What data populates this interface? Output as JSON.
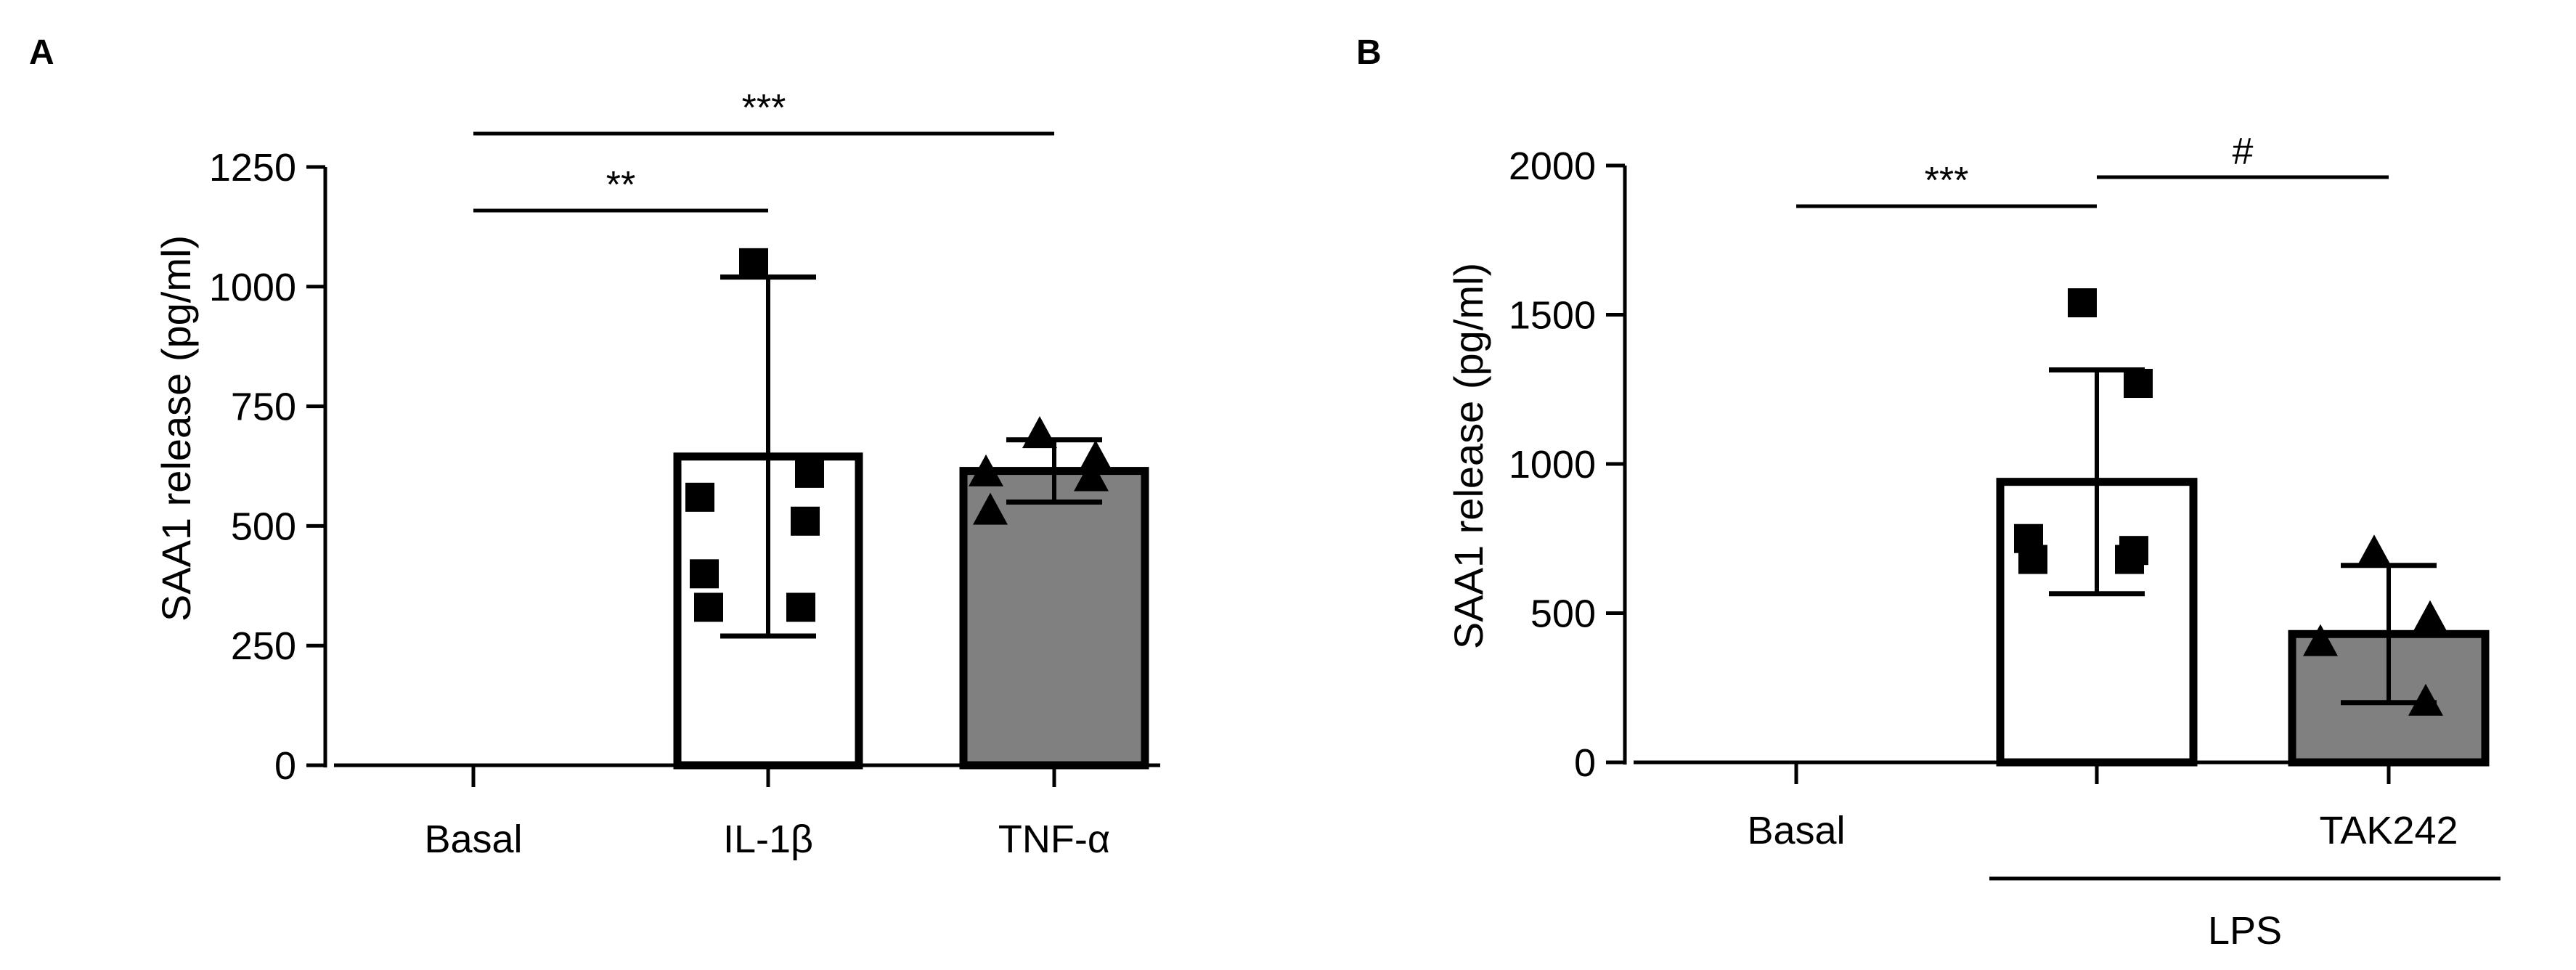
{
  "chart_data": [
    {
      "panel": "A",
      "type": "bar",
      "ylabel": "SAA1 release (pg/ml)",
      "ylim": [
        0,
        1250
      ],
      "yticks": [
        0,
        250,
        500,
        750,
        1000,
        1250
      ],
      "categories": [
        "Basal",
        "IL-1β",
        "TNF-α"
      ],
      "bars": [
        {
          "category": "Basal",
          "value": 0,
          "error": 0,
          "fill": "#ffffff",
          "marker": "none",
          "points": []
        },
        {
          "category": "IL-1β",
          "value": 645,
          "error": 375,
          "fill": "#ffffff",
          "marker": "square",
          "points": [
            1050,
            610,
            560,
            510,
            400,
            330,
            330
          ]
        },
        {
          "category": "TNF-α",
          "value": 615,
          "error": 65,
          "fill": "#808080",
          "marker": "triangle",
          "points": [
            690,
            640,
            610,
            600,
            530
          ]
        }
      ],
      "significance": [
        {
          "from": "Basal",
          "to": "IL-1β",
          "label": "**"
        },
        {
          "from": "Basal",
          "to": "TNF-α",
          "label": "***"
        }
      ]
    },
    {
      "panel": "B",
      "type": "bar",
      "ylabel": "SAA1 release (pg/ml)",
      "ylim": [
        0,
        2000
      ],
      "yticks": [
        0,
        500,
        1000,
        1500,
        2000
      ],
      "categories": [
        "Basal",
        "",
        "TAK242"
      ],
      "group_label": {
        "text": "LPS",
        "spans": [
          "",
          "TAK242"
        ]
      },
      "bars": [
        {
          "category": "Basal",
          "value": 0,
          "error": 0,
          "fill": "#ffffff",
          "marker": "none",
          "points": []
        },
        {
          "category": "",
          "value": 940,
          "error": 375,
          "fill": "#ffffff",
          "marker": "square",
          "points": [
            1540,
            1270,
            750,
            710,
            680,
            680
          ]
        },
        {
          "category": "TAK242",
          "value": 430,
          "error": 230,
          "fill": "#808080",
          "marker": "triangle",
          "points": [
            700,
            480,
            400,
            200
          ]
        }
      ],
      "significance": [
        {
          "from": "Basal",
          "to": "",
          "label": "***"
        },
        {
          "from": "",
          "to": "TAK242",
          "label": "#"
        }
      ]
    }
  ]
}
